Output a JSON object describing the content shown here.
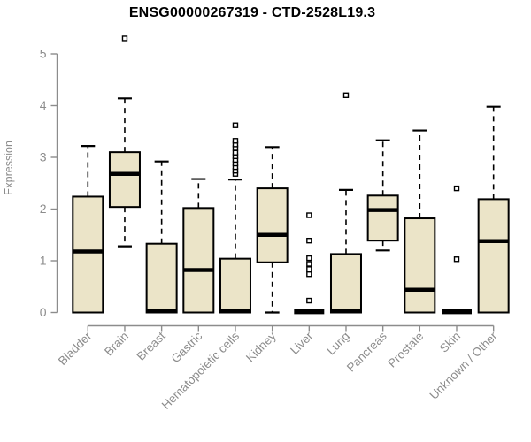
{
  "chart_data": {
    "type": "boxplot",
    "title": "ENSG00000267319 - CTD-2528L19.3",
    "ylabel": "Expression",
    "xlabel": "",
    "ylim": [
      0,
      5.4
    ],
    "yticks": [
      0,
      1,
      2,
      3,
      4,
      5
    ],
    "grid": false,
    "legend": "none",
    "categories": [
      "Bladder",
      "Brain",
      "Breast",
      "Gastric",
      "Hematopoietic cells",
      "Kidney",
      "Liver",
      "Lung",
      "Pancreas",
      "Prostate",
      "Skin",
      "Unknown / Other"
    ],
    "boxes": [
      {
        "category": "Bladder",
        "whisker_low": 0,
        "q1": 0,
        "median": 1.18,
        "q3": 2.24,
        "whisker_high": 3.22,
        "outliers": []
      },
      {
        "category": "Brain",
        "whisker_low": 1.28,
        "q1": 2.04,
        "median": 2.68,
        "q3": 3.1,
        "whisker_high": 4.14,
        "outliers": [
          5.3
        ]
      },
      {
        "category": "Breast",
        "whisker_low": 0,
        "q1": 0,
        "median": 0.03,
        "q3": 1.33,
        "whisker_high": 2.92,
        "outliers": []
      },
      {
        "category": "Gastric",
        "whisker_low": 0,
        "q1": 0,
        "median": 0.82,
        "q3": 2.02,
        "whisker_high": 2.58,
        "outliers": []
      },
      {
        "category": "Hematopoietic cells",
        "whisker_low": 0,
        "q1": 0,
        "median": 0.03,
        "q3": 1.04,
        "whisker_high": 2.57,
        "outliers": [
          2.68,
          2.74,
          2.81,
          2.88,
          2.95,
          3.02,
          3.09,
          3.18,
          3.25,
          3.32,
          3.62
        ]
      },
      {
        "category": "Kidney",
        "whisker_low": 0,
        "q1": 0.97,
        "median": 1.5,
        "q3": 2.4,
        "whisker_high": 3.2,
        "outliers": []
      },
      {
        "category": "Liver",
        "whisker_low": 0,
        "q1": 0,
        "median": 0.02,
        "q3": 0.02,
        "whisker_high": 0.02,
        "outliers": [
          0.23,
          0.74,
          0.84,
          0.94,
          1.05,
          1.39,
          1.88
        ]
      },
      {
        "category": "Lung",
        "whisker_low": 0,
        "q1": 0,
        "median": 0.03,
        "q3": 1.13,
        "whisker_high": 2.37,
        "outliers": [
          4.2
        ]
      },
      {
        "category": "Pancreas",
        "whisker_low": 1.2,
        "q1": 1.39,
        "median": 1.98,
        "q3": 2.26,
        "whisker_high": 3.33,
        "outliers": []
      },
      {
        "category": "Prostate",
        "whisker_low": 0,
        "q1": 0,
        "median": 0.44,
        "q3": 1.82,
        "whisker_high": 3.52,
        "outliers": []
      },
      {
        "category": "Skin",
        "whisker_low": 0,
        "q1": 0,
        "median": 0.02,
        "q3": 0.02,
        "whisker_high": 0.02,
        "outliers": [
          1.03,
          2.4
        ]
      },
      {
        "category": "Unknown / Other",
        "whisker_low": 0,
        "q1": 0,
        "median": 1.38,
        "q3": 2.19,
        "whisker_high": 3.98,
        "outliers": []
      }
    ],
    "colors": {
      "box_fill": "#EBE4C8",
      "box_border": "#000000",
      "median": "#000000",
      "whisker": "#000000",
      "axis": "#8C8C8C",
      "tick_label": "#8C8C8C",
      "axis_title": "#8C8C8C",
      "title": "#000000",
      "outlier_fill": "#FFFFFF",
      "outlier_stroke": "#000000",
      "background": "#FFFFFF"
    }
  }
}
